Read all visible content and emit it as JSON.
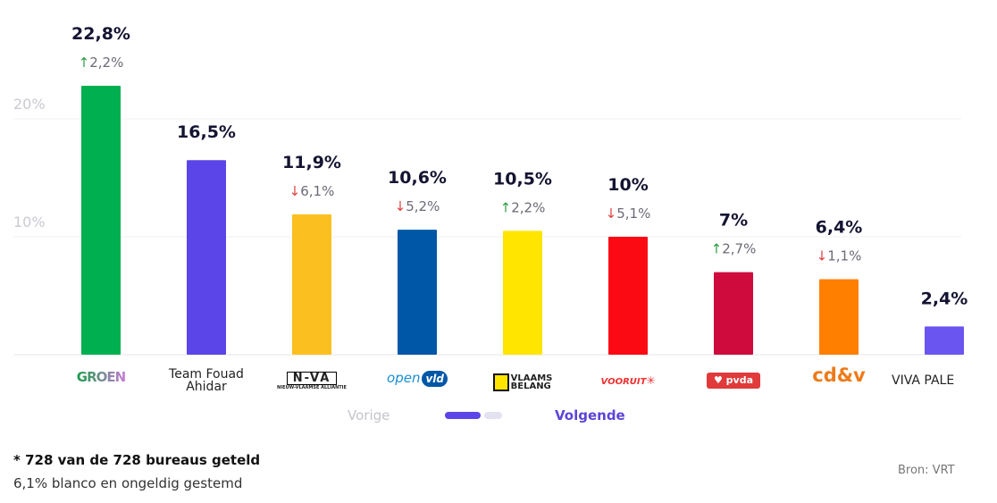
{
  "chart_data": {
    "type": "bar",
    "categories": [
      "GROEN",
      "Team Fouad Ahidar",
      "N-VA",
      "open vld",
      "Vlaams Belang",
      "Vooruit",
      "pvda",
      "cd&v",
      "VIVA PALE"
    ],
    "values": [
      22.8,
      16.5,
      11.9,
      10.6,
      10.5,
      10,
      7,
      6.4,
      2.4
    ],
    "value_labels": [
      "22,8%",
      "16,5%",
      "11,9%",
      "10,6%",
      "10,5%",
      "10%",
      "7%",
      "6,4%",
      "2,4%"
    ],
    "changes": [
      {
        "dir": "up",
        "label": "2,2%"
      },
      null,
      {
        "dir": "down",
        "label": "6,1%"
      },
      {
        "dir": "down",
        "label": "5,2%"
      },
      {
        "dir": "up",
        "label": "2,2%"
      },
      {
        "dir": "down",
        "label": "5,1%"
      },
      {
        "dir": "up",
        "label": "2,7%"
      },
      {
        "dir": "down",
        "label": "1,1%"
      },
      null
    ],
    "colors": [
      "#00b050",
      "#5b45e8",
      "#fbbf1f",
      "#0057a8",
      "#ffe500",
      "#fc0a14",
      "#cf0a3d",
      "#ff7f00",
      "#6b55f0"
    ],
    "y_ticks": [
      "10%",
      "20%"
    ],
    "ylim": [
      0,
      30
    ],
    "grid": true,
    "up_color": "#2e9e48",
    "down_color": "#e04040"
  },
  "logos": {
    "groen": "GROEN",
    "team": "Team Fouad Ahidar",
    "nva": "N-VA",
    "nva_sub": "NIEUW-VLAAMSE ALLIANTIE",
    "openvld_a": "open",
    "openvld_b": "vld",
    "vb_a": "VLAAMS",
    "vb_b": "BELANG",
    "vooruit": "VOORUIT",
    "pvda": "pvda",
    "cdv": "cd&v",
    "viva": "VIVA PALE"
  },
  "nav": {
    "prev": "Vorige",
    "next": "Volgende",
    "page": 1,
    "pages": 2
  },
  "footer": {
    "count": "* 728 van de 728 bureaus geteld",
    "blank": "6,1% blanco en ongeldig gestemd",
    "source": "Bron: VRT"
  }
}
